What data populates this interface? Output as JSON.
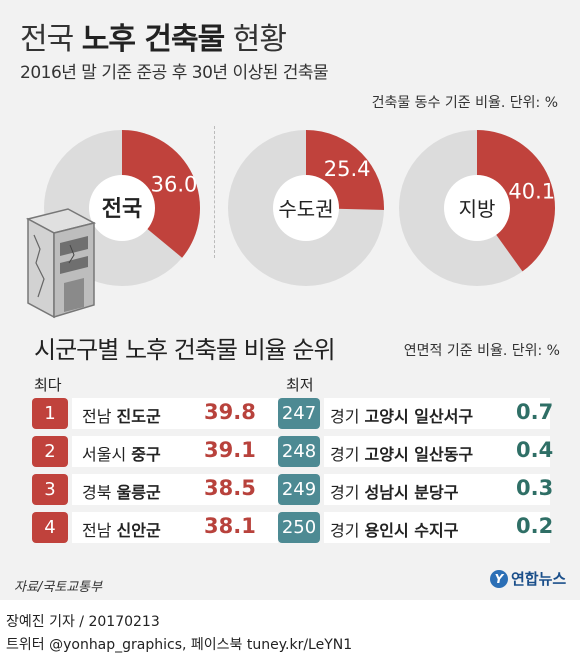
{
  "title": {
    "prefix": "전국 ",
    "bold": "노후 건축물",
    "suffix": " 현황"
  },
  "subtitle": "2016년 말 기준 준공 후 30년 이상된 건축물",
  "unit_top": "건축물 동수 기준 비율. 단위: %",
  "colors": {
    "accent_red": "#c0423c",
    "donut_gray": "#dcdcdc",
    "badge_teal": "#4d8a93",
    "value_teal": "#2f6f66",
    "value_red": "#b8423c"
  },
  "chart_data": [
    {
      "type": "pie",
      "title": "건축물 동수 기준 비율. 단위: %",
      "slices": [
        {
          "label": "전국",
          "value": 36.0
        },
        {
          "label": "수도권",
          "value": 25.4
        },
        {
          "label": "지방",
          "value": 40.1
        }
      ]
    },
    {
      "type": "table",
      "title": "시군구별 노후 건축물 비율 순위",
      "unit": "연면적 기준 비율. 단위: %",
      "top_header": "최다",
      "bottom_header": "최저",
      "top": [
        {
          "rank": "1",
          "prefix": "전남",
          "name": "진도군",
          "value": "39.8"
        },
        {
          "rank": "2",
          "prefix": "서울시",
          "name": "중구",
          "value": "39.1"
        },
        {
          "rank": "3",
          "prefix": "경북",
          "name": "울릉군",
          "value": "38.5"
        },
        {
          "rank": "4",
          "prefix": "전남",
          "name": "신안군",
          "value": "38.1"
        }
      ],
      "bottom": [
        {
          "rank": "247",
          "prefix": "경기",
          "name": "고양시 일산서구",
          "value": "0.7"
        },
        {
          "rank": "248",
          "prefix": "경기",
          "name": "고양시 일산동구",
          "value": "0.4"
        },
        {
          "rank": "249",
          "prefix": "경기",
          "name": "성남시 분당구",
          "value": "0.3"
        },
        {
          "rank": "250",
          "prefix": "경기",
          "name": "용인시 수지구",
          "value": "0.2"
        }
      ]
    }
  ],
  "ranking": {
    "title": "시군구별 노후 건축물 비율 순위",
    "unit": "연면적 기준 비율. 단위: %",
    "top_header": "최다",
    "bottom_header": "최저"
  },
  "source": "자료/국토교통부",
  "logo_text": "연합뉴스",
  "credit_line1": "장예진 기자 / 20170213",
  "credit_line2": "트위터 @yonhap_graphics, 페이스북 tuney.kr/LeYN1"
}
